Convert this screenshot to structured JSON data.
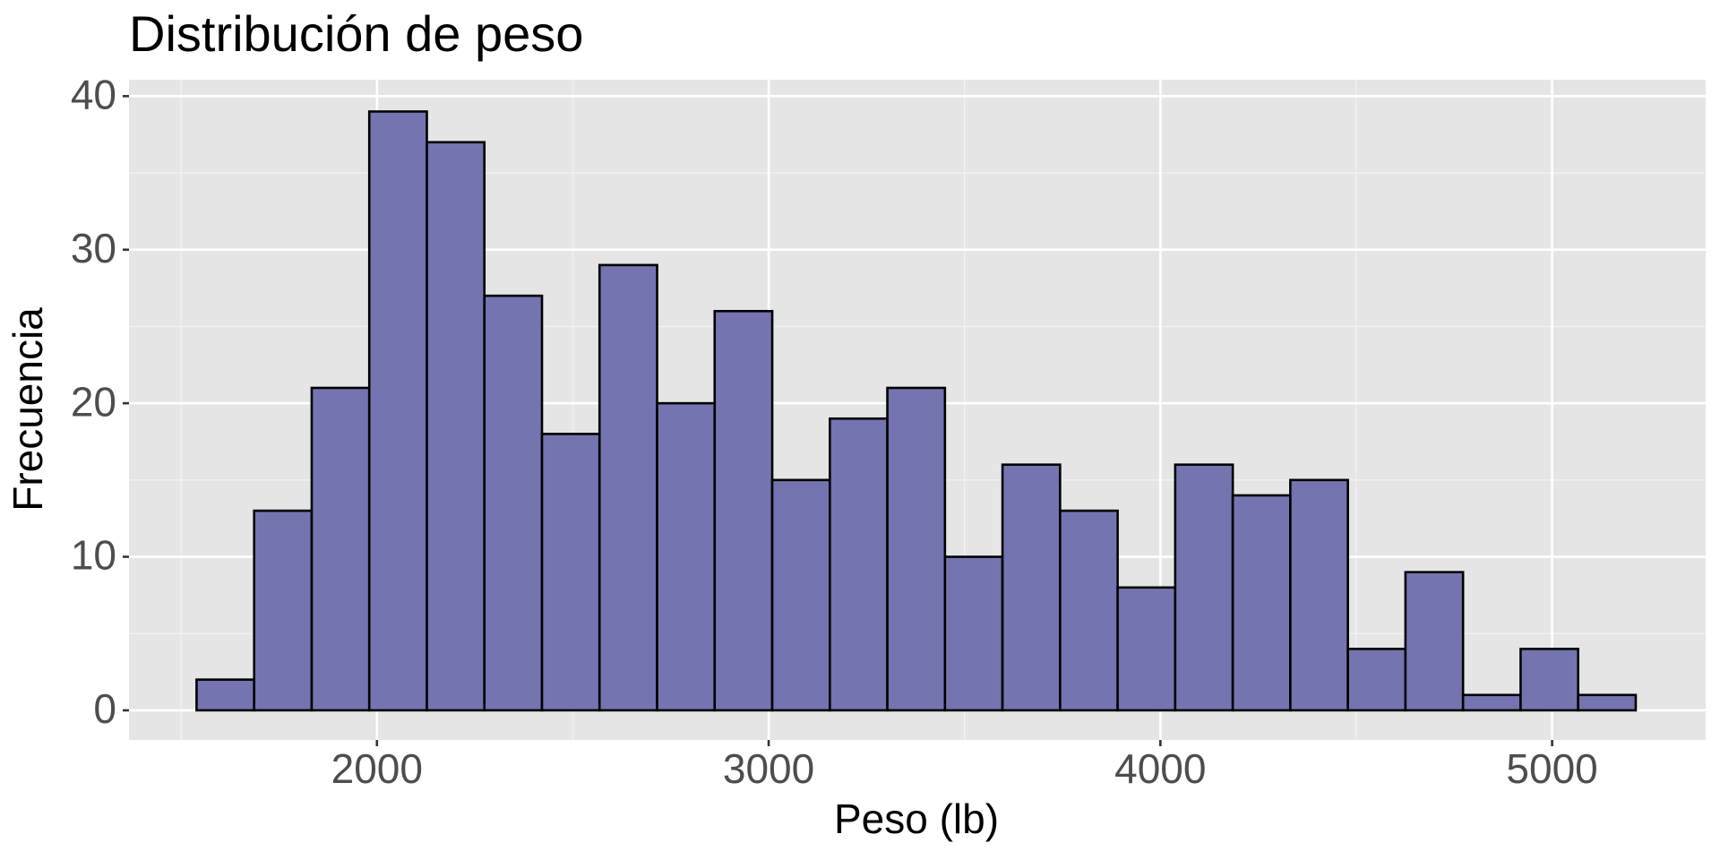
{
  "chart_data": {
    "type": "histogram",
    "title": "Distribución de peso",
    "x_label": "Peso (lb)",
    "y_label": "Frecuencia",
    "bins": [
      1539.5,
      1686.5,
      1833.4,
      1980.4,
      2127.4,
      2274.3,
      2421.3,
      2568.2,
      2715.2,
      2862.1,
      3009.1,
      3156.1,
      3303.0,
      3450.0,
      3596.9,
      3743.9,
      3890.9,
      4037.8,
      4184.8,
      4331.7,
      4478.7,
      4625.6,
      4772.6,
      4919.6,
      5066.5,
      5213.5
    ],
    "values": [
      2,
      13,
      21,
      39,
      37,
      27,
      18,
      29,
      20,
      26,
      15,
      19,
      21,
      10,
      16,
      13,
      8,
      16,
      14,
      15,
      4,
      9,
      1,
      4,
      1
    ],
    "color": "#7474b0",
    "edgecolor": "#000000",
    "xlim": [
      1367,
      5392
    ],
    "xticks": [
      2000,
      3000,
      4000,
      5000
    ],
    "xminor": [
      1500,
      2500,
      3500,
      4500
    ],
    "ylim": [
      -1.93,
      41.07
    ],
    "yticks": [
      0,
      10,
      20,
      30,
      40
    ],
    "yminor": [
      5,
      15,
      25,
      35
    ],
    "grid": true
  }
}
